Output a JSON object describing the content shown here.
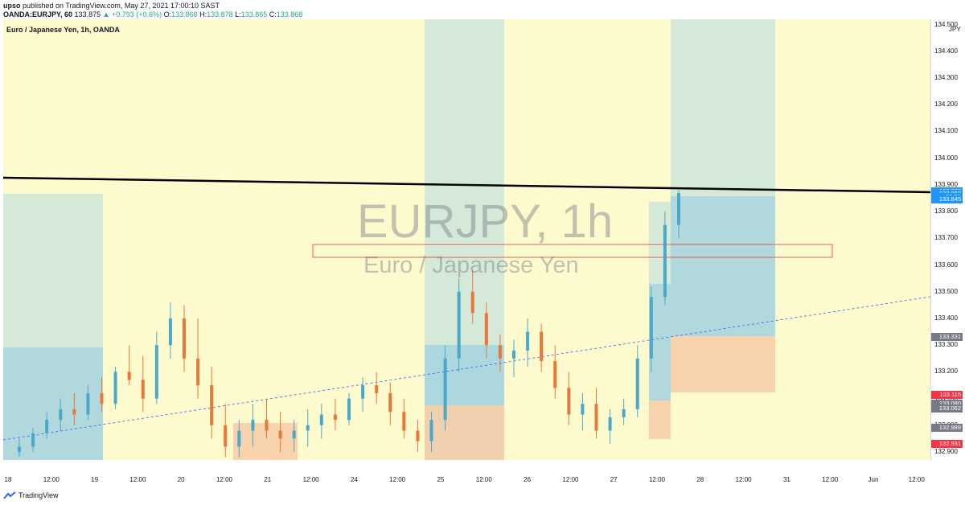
{
  "header": {
    "author": "upso",
    "published": "published on TradingView.com, May 27, 2021 17:00:10 SAST",
    "symbol_line": "OANDA:EURJPY, 60",
    "last": "133.875",
    "change": "▲ +0.793 (+0.6%)",
    "open_label": "O:",
    "open": "133.868",
    "high_label": "H:",
    "high": "133.878",
    "low_label": "L:",
    "low": "133.865",
    "close_label": "C:",
    "close": "133.868"
  },
  "legend": "Euro / Japanese Yen, 1h, OANDA",
  "watermark": {
    "symbol": "EURJPY, 1h",
    "description": "Euro / Japanese Yen"
  },
  "currency": "JPY",
  "price_axis": [
    "134.500",
    "134.400",
    "134.300",
    "134.200",
    "134.100",
    "134.000",
    "133.900",
    "133.800",
    "133.700",
    "133.600",
    "133.500",
    "133.400",
    "133.300",
    "133.200",
    "133.100",
    "133.000",
    "132.900"
  ],
  "price_tags": [
    {
      "text": "133.877",
      "price": 133.877,
      "color": "#2196f3"
    },
    {
      "text": "133.868",
      "price": 133.868,
      "color": "#2196f3"
    },
    {
      "text": "59:51",
      "price": 133.856,
      "color": "#2196f3"
    },
    {
      "text": "133.845",
      "price": 133.845,
      "color": "#2196f3"
    },
    {
      "text": "133.331",
      "price": 133.331,
      "color": "#787b86"
    },
    {
      "text": "133.115",
      "price": 133.115,
      "color": "#f23645"
    },
    {
      "text": "133.080",
      "price": 133.08,
      "color": "#787b86"
    },
    {
      "text": "133.062",
      "price": 133.062,
      "color": "#787b86"
    },
    {
      "text": "132.990",
      "price": 132.99,
      "color": "#2196f3"
    },
    {
      "text": "132.989",
      "price": 132.989,
      "color": "#787b86"
    },
    {
      "text": "132.931",
      "price": 132.931,
      "color": "#f23645"
    }
  ],
  "time_axis": [
    "18",
    "12:00",
    "19",
    "12:00",
    "20",
    "12:00",
    "21",
    "12:00",
    "24",
    "12:00",
    "25",
    "12:00",
    "26",
    "12:00",
    "27",
    "12:00",
    "28",
    "12:00",
    "31",
    "12:00",
    "Jun",
    "12:00"
  ],
  "footer": "TradingView",
  "colors": {
    "background": "#fdfbce",
    "up": "#4aa8c8",
    "down": "#e8773a",
    "profit_zone": "#cfe7d8",
    "stop_zone": "#f8ceaa",
    "target_zone": "#a9d5df"
  },
  "chart_data": {
    "type": "candlestick",
    "symbol": "EURJPY",
    "interval": "1h",
    "ylim": [
      132.87,
      134.52
    ],
    "candles": [
      [
        132.9,
        132.95,
        132.88,
        132.92
      ],
      [
        132.92,
        132.99,
        132.9,
        132.97
      ],
      [
        132.97,
        133.05,
        132.95,
        133.02
      ],
      [
        133.02,
        133.1,
        132.98,
        133.06
      ],
      [
        133.06,
        133.12,
        133.0,
        133.04
      ],
      [
        133.04,
        133.15,
        133.02,
        133.12
      ],
      [
        133.12,
        133.18,
        133.05,
        133.08
      ],
      [
        133.08,
        133.22,
        133.06,
        133.2
      ],
      [
        133.2,
        133.3,
        133.15,
        133.17
      ],
      [
        133.17,
        133.26,
        133.05,
        133.1
      ],
      [
        133.1,
        133.35,
        133.08,
        133.3
      ],
      [
        133.3,
        133.46,
        133.25,
        133.4
      ],
      [
        133.4,
        133.45,
        133.2,
        133.25
      ],
      [
        133.25,
        133.4,
        133.1,
        133.15
      ],
      [
        133.15,
        133.22,
        132.95,
        133.0
      ],
      [
        133.0,
        133.08,
        132.88,
        132.92
      ],
      [
        132.92,
        133.02,
        132.88,
        132.98
      ],
      [
        132.98,
        133.08,
        132.92,
        133.02
      ],
      [
        133.02,
        133.1,
        132.95,
        132.98
      ],
      [
        132.98,
        133.05,
        132.9,
        132.95
      ],
      [
        132.95,
        133.02,
        132.9,
        132.98
      ],
      [
        132.98,
        133.06,
        132.92,
        133.0
      ],
      [
        133.0,
        133.08,
        132.95,
        133.04
      ],
      [
        133.04,
        133.1,
        132.98,
        133.02
      ],
      [
        133.02,
        133.12,
        133.0,
        133.1
      ],
      [
        133.1,
        133.18,
        133.05,
        133.15
      ],
      [
        133.15,
        133.2,
        133.08,
        133.12
      ],
      [
        133.12,
        133.16,
        133.0,
        133.05
      ],
      [
        133.05,
        133.1,
        132.95,
        132.98
      ],
      [
        132.98,
        133.02,
        132.9,
        132.94
      ],
      [
        132.94,
        133.05,
        132.9,
        133.02
      ],
      [
        133.02,
        133.3,
        132.98,
        133.25
      ],
      [
        133.25,
        133.55,
        133.2,
        133.5
      ],
      [
        133.5,
        133.58,
        133.38,
        133.42
      ],
      [
        133.42,
        133.46,
        133.25,
        133.3
      ],
      [
        133.3,
        133.34,
        133.2,
        133.25
      ],
      [
        133.25,
        133.32,
        133.18,
        133.28
      ],
      [
        133.28,
        133.4,
        133.22,
        133.35
      ],
      [
        133.35,
        133.38,
        133.2,
        133.24
      ],
      [
        133.24,
        133.3,
        133.1,
        133.14
      ],
      [
        133.14,
        133.2,
        133.0,
        133.04
      ],
      [
        133.04,
        133.12,
        132.98,
        133.08
      ],
      [
        133.08,
        133.14,
        132.95,
        132.98
      ],
      [
        132.98,
        133.06,
        132.93,
        133.03
      ],
      [
        133.03,
        133.1,
        133.0,
        133.06
      ],
      [
        133.06,
        133.3,
        133.03,
        133.25
      ],
      [
        133.25,
        133.52,
        133.2,
        133.48
      ],
      [
        133.48,
        133.8,
        133.45,
        133.75
      ],
      [
        133.75,
        133.88,
        133.7,
        133.87
      ]
    ]
  }
}
